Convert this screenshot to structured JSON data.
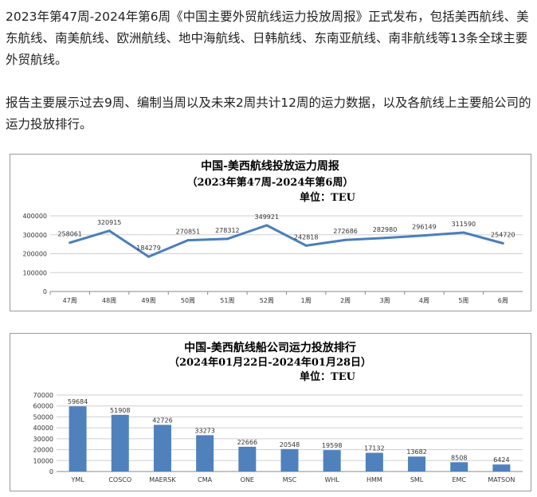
{
  "article": {
    "paragraph1": "2023年第47周-2024年第6周《中国主要外贸航线运力投放周报》正式发布，包括美西航线、美东航线、南美航线、欧洲航线、地中海航线、日韩航线、东南亚航线、南非航线等13条全球主要外贸航线。",
    "paragraph2": "报告主要展示过去9周、编制当周以及未来2周共计12周的运力数据，以及各航线上主要船公司的运力投放排行。"
  },
  "chart_data": [
    {
      "type": "line",
      "title": "中国-美西航线投放运力周报",
      "subtitle": "（2023年第47周-2024年第6周）",
      "unit": "单位：TEU",
      "categories": [
        "47周",
        "48周",
        "49周",
        "50周",
        "51周",
        "52周",
        "1周",
        "2周",
        "3周",
        "4周",
        "5周",
        "6周"
      ],
      "values": [
        258061,
        320915,
        184279,
        270851,
        278312,
        349921,
        242818,
        272686,
        282980,
        296149,
        311590,
        254720
      ],
      "yticks": [
        "0",
        "100000",
        "200000",
        "300000",
        "400000"
      ],
      "ylim": [
        0,
        400000
      ],
      "grid": true,
      "color": "#4a7ebb"
    },
    {
      "type": "bar",
      "title": "中国-美西航线船公司运力投放排行",
      "subtitle": "（2024年01月22日-2024年01月28日）",
      "unit": "单位：TEU",
      "categories": [
        "YML",
        "COSCO",
        "MAERSK",
        "CMA",
        "ONE",
        "MSC",
        "WHL",
        "HMM",
        "SML",
        "EMC",
        "MATSON"
      ],
      "values": [
        59684,
        51908,
        42726,
        33273,
        22666,
        20548,
        19598,
        17132,
        13682,
        8508,
        6424
      ],
      "yticks": [
        "0",
        "10000",
        "20000",
        "30000",
        "40000",
        "50000",
        "60000",
        "70000"
      ],
      "ylim": [
        0,
        70000
      ],
      "grid": true,
      "color": "#4f81bd"
    }
  ]
}
